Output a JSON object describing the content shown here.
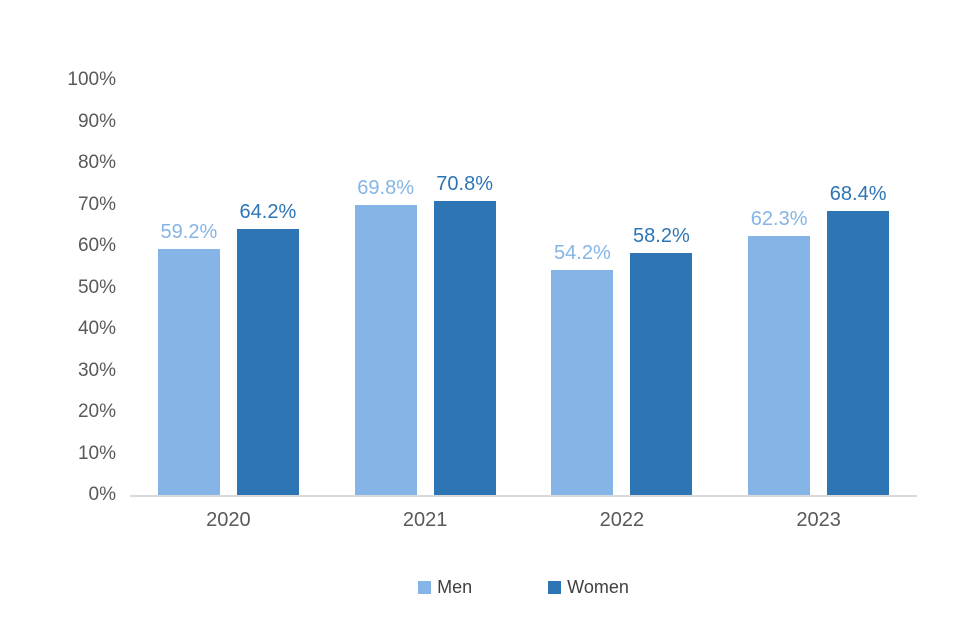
{
  "chart_data": {
    "type": "bar",
    "title": "",
    "categories": [
      "2020",
      "2021",
      "2022",
      "2023"
    ],
    "series": [
      {
        "name": "Men",
        "color": "#85b5e6",
        "label_color": "#85b5e6",
        "values": [
          59.2,
          69.8,
          54.2,
          62.3
        ],
        "labels": [
          "59.2%",
          "69.8%",
          "54.2%",
          "62.3%"
        ]
      },
      {
        "name": "Women",
        "color": "#2e75b6",
        "label_color": "#2e75b6",
        "values": [
          64.2,
          70.8,
          58.2,
          68.4
        ],
        "labels": [
          "64.2%",
          "70.8%",
          "58.2%",
          "68.4%"
        ]
      }
    ],
    "ylim": [
      0,
      100
    ],
    "yticks": [
      0,
      10,
      20,
      30,
      40,
      50,
      60,
      70,
      80,
      90,
      100
    ],
    "ytick_labels": [
      "0%",
      "10%",
      "20%",
      "30%",
      "40%",
      "50%",
      "60%",
      "70%",
      "80%",
      "90%",
      "100%"
    ],
    "xlabel": "",
    "ylabel": "",
    "grid": false,
    "legend_position": "bottom",
    "axis_line_color": "#d9d9d9",
    "tick_label_color": "#595959",
    "legend_text_color": "#404040"
  }
}
